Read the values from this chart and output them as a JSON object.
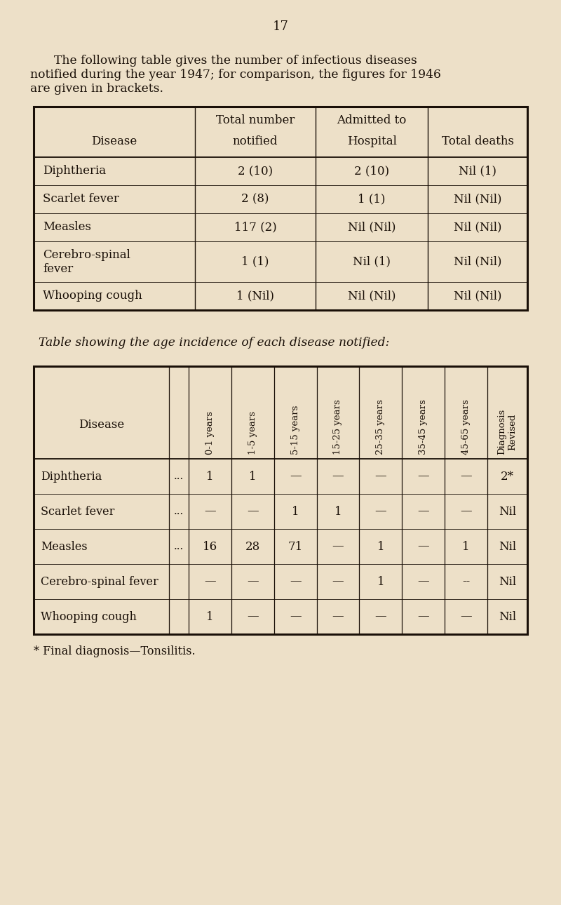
{
  "bg_color": "#ede0c8",
  "page_number": "17",
  "intro_text_line1": "    The following table gives the number of infectious diseases",
  "intro_text_line2": "notified during the year 1947; for comparison, the figures for 1946",
  "intro_text_line3": "are given in brackets.",
  "table1": {
    "col_boundaries": [
      48,
      278,
      450,
      610,
      752
    ],
    "header_rows": [
      [
        "",
        "Total number",
        "Admitted to",
        ""
      ],
      [
        "Disease",
        "notified",
        "Hospital",
        "Total deaths"
      ]
    ],
    "rows": [
      [
        "Diphtheria",
        "2 (10)",
        "2 (10)",
        "Nil (1)"
      ],
      [
        "Scarlet fever",
        "2 (8)",
        "1 (1)",
        "Nil (Nil)"
      ],
      [
        "Measles",
        "117 (2)",
        "Nil (Nil)",
        "Nil (Nil)"
      ],
      [
        "Cerebro-spinal",
        "1 (1)",
        "Nil (1)",
        "Nil (Nil)"
      ],
      [
        "Whooping cough",
        "1 (Nil)",
        "Nil (Nil)",
        "Nil (Nil)"
      ]
    ],
    "cerebro_sub": "fever"
  },
  "middle_text": "Table showing the age incidence of each disease notified:",
  "table2": {
    "rotated_headers": [
      "0-1 years",
      "1-5 years",
      "5-15 years",
      "15-25 years",
      "25-35 years",
      "35-45 years",
      "45-65 years",
      "Diagnosis\nRevised"
    ],
    "rows": [
      [
        "Diphtheria",
        "...",
        "1",
        "1",
        "—",
        "—",
        "—",
        "—",
        "—",
        "2*"
      ],
      [
        "Scarlet fever",
        "...",
        "—",
        "—",
        "1",
        "1",
        "—",
        "—",
        "—",
        "Nil"
      ],
      [
        "Measles",
        "...",
        "16",
        "28",
        "71",
        "—",
        "1",
        "—",
        "1",
        "Nil"
      ],
      [
        "Cerebro-spinal fever",
        "",
        "—",
        "—",
        "—",
        "—",
        "1",
        "—",
        "--",
        "Nil"
      ],
      [
        "Whooping cough",
        "",
        "1",
        "—",
        "—",
        "—",
        "—",
        "—",
        "—",
        "Nil"
      ]
    ]
  },
  "footnote": "* Final diagnosis—Tonsilitis."
}
